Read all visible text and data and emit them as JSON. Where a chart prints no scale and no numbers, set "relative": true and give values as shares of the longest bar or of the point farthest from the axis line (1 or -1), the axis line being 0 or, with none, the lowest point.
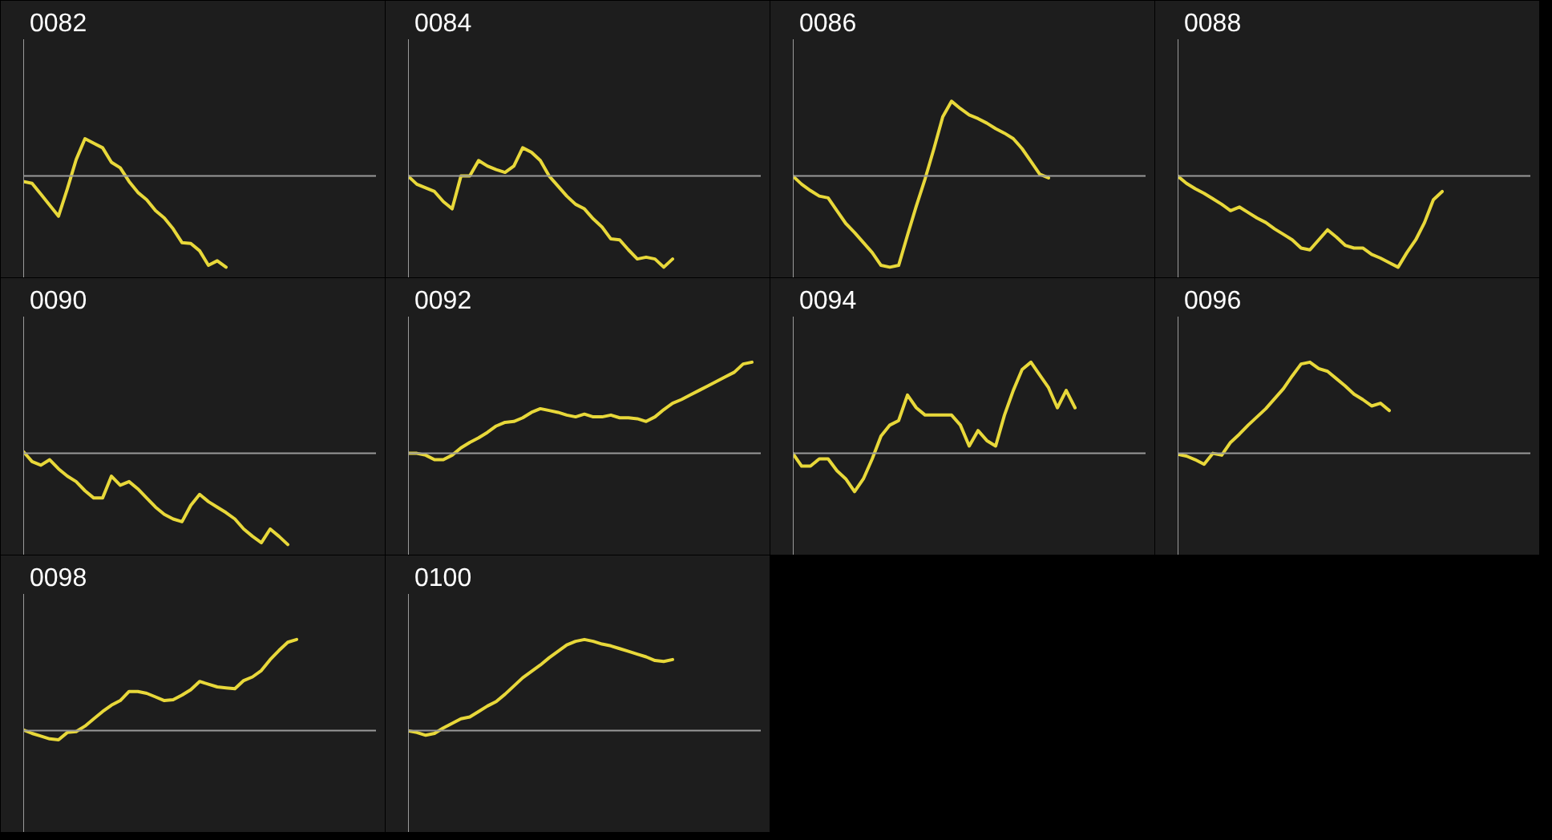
{
  "chart_data": [
    {
      "type": "line",
      "title": "0082",
      "relative": true,
      "color": "#e8d83a",
      "categories": [
        null,
        null,
        null,
        null,
        null,
        null,
        null,
        null,
        null,
        null,
        null,
        null,
        null,
        null,
        null,
        null,
        null,
        null,
        null,
        null,
        null,
        null,
        null,
        null,
        null,
        null,
        null,
        null,
        null,
        null,
        null,
        null,
        null,
        null,
        null,
        null,
        null,
        null,
        null,
        null
      ],
      "values": [
        -0.06,
        -0.08,
        -0.2,
        -0.32,
        -0.44,
        -0.14,
        0.18,
        0.41,
        0.36,
        0.31,
        0.15,
        0.09,
        -0.06,
        -0.18,
        -0.26,
        -0.38,
        -0.46,
        -0.58,
        -0.73,
        -0.74,
        -0.82,
        -0.98,
        -0.93,
        -1,
        null,
        null,
        null,
        null,
        null,
        null,
        null,
        null,
        null,
        null,
        null,
        null,
        null,
        null,
        null,
        null
      ]
    },
    {
      "type": "line",
      "title": "0084",
      "relative": true,
      "color": "#e8d83a",
      "categories": [
        null,
        null,
        null,
        null,
        null,
        null,
        null,
        null,
        null,
        null,
        null,
        null,
        null,
        null,
        null,
        null,
        null,
        null,
        null,
        null,
        null,
        null,
        null,
        null,
        null,
        null,
        null,
        null,
        null,
        null,
        null,
        null,
        null,
        null,
        null,
        null,
        null,
        null,
        null,
        null
      ],
      "values": [
        0,
        -0.09,
        -0.13,
        -0.17,
        -0.28,
        -0.36,
        0,
        0,
        0.17,
        0.11,
        0.07,
        0.04,
        0.11,
        0.31,
        0.26,
        0.17,
        0,
        -0.11,
        -0.22,
        -0.31,
        -0.36,
        -0.47,
        -0.56,
        -0.69,
        -0.7,
        -0.81,
        -0.91,
        -0.89,
        -0.91,
        -1,
        -0.91,
        null,
        null,
        null,
        null,
        null,
        null,
        null,
        null,
        null
      ]
    },
    {
      "type": "line",
      "title": "0086",
      "relative": true,
      "color": "#e8d83a",
      "categories": [
        null,
        null,
        null,
        null,
        null,
        null,
        null,
        null,
        null,
        null,
        null,
        null,
        null,
        null,
        null,
        null,
        null,
        null,
        null,
        null,
        null,
        null,
        null,
        null,
        null,
        null,
        null,
        null,
        null,
        null,
        null,
        null,
        null,
        null,
        null,
        null,
        null,
        null,
        null,
        null
      ],
      "values": [
        0,
        -0.09,
        -0.16,
        -0.22,
        -0.24,
        -0.38,
        -0.52,
        -0.62,
        -0.73,
        -0.84,
        -0.98,
        -1,
        -0.98,
        -0.65,
        -0.33,
        -0.03,
        0.3,
        0.65,
        0.82,
        0.74,
        0.67,
        0.63,
        0.58,
        0.52,
        0.47,
        0.41,
        0.3,
        0.16,
        0.02,
        -0.02,
        null,
        null,
        null,
        null,
        null,
        null,
        null,
        null,
        null,
        null
      ]
    },
    {
      "type": "line",
      "title": "0088",
      "relative": true,
      "color": "#e8d83a",
      "categories": [
        null,
        null,
        null,
        null,
        null,
        null,
        null,
        null,
        null,
        null,
        null,
        null,
        null,
        null,
        null,
        null,
        null,
        null,
        null,
        null,
        null,
        null,
        null,
        null,
        null,
        null,
        null,
        null,
        null,
        null,
        null,
        null,
        null,
        null,
        null,
        null,
        null,
        null,
        null,
        null
      ],
      "values": [
        0,
        -0.08,
        -0.14,
        -0.19,
        -0.25,
        -0.31,
        -0.38,
        -0.34,
        -0.4,
        -0.46,
        -0.51,
        -0.58,
        -0.64,
        -0.7,
        -0.79,
        -0.81,
        -0.7,
        -0.59,
        -0.67,
        -0.76,
        -0.79,
        -0.79,
        -0.86,
        -0.9,
        -0.95,
        -1,
        -0.84,
        -0.7,
        -0.51,
        -0.26,
        -0.17,
        null,
        null,
        null,
        null,
        null,
        null,
        null,
        null,
        null
      ]
    },
    {
      "type": "line",
      "title": "0090",
      "relative": true,
      "color": "#e8d83a",
      "categories": [
        null,
        null,
        null,
        null,
        null,
        null,
        null,
        null,
        null,
        null,
        null,
        null,
        null,
        null,
        null,
        null,
        null,
        null,
        null,
        null,
        null,
        null,
        null,
        null,
        null,
        null,
        null,
        null,
        null,
        null,
        null,
        null,
        null,
        null,
        null,
        null,
        null,
        null,
        null,
        null
      ],
      "values": [
        0.02,
        -0.09,
        -0.13,
        -0.07,
        -0.17,
        -0.25,
        -0.31,
        -0.41,
        -0.49,
        -0.49,
        -0.25,
        -0.35,
        -0.31,
        -0.39,
        -0.49,
        -0.59,
        -0.67,
        -0.72,
        -0.75,
        -0.57,
        -0.45,
        -0.53,
        -0.59,
        -0.65,
        -0.72,
        -0.83,
        -0.91,
        -0.98,
        -0.83,
        -0.91,
        -1,
        null,
        null,
        null,
        null,
        null,
        null,
        null,
        null,
        null
      ]
    },
    {
      "type": "line",
      "title": "0092",
      "relative": true,
      "color": "#e8d83a",
      "categories": [
        null,
        null,
        null,
        null,
        null,
        null,
        null,
        null,
        null,
        null,
        null,
        null,
        null,
        null,
        null,
        null,
        null,
        null,
        null,
        null,
        null,
        null,
        null,
        null,
        null,
        null,
        null,
        null,
        null,
        null,
        null,
        null,
        null,
        null,
        null,
        null,
        null,
        null,
        null,
        null
      ],
      "values": [
        0,
        0,
        -0.02,
        -0.07,
        -0.07,
        -0.02,
        0.06,
        0.12,
        0.17,
        0.23,
        0.3,
        0.34,
        0.35,
        0.39,
        0.45,
        0.49,
        0.47,
        0.45,
        0.42,
        0.4,
        0.43,
        0.4,
        0.4,
        0.42,
        0.39,
        0.39,
        0.38,
        0.35,
        0.4,
        0.48,
        0.55,
        0.59,
        0.64,
        0.69,
        0.74,
        0.79,
        0.84,
        0.89,
        0.98,
        1
      ]
    },
    {
      "type": "line",
      "title": "0094",
      "relative": true,
      "color": "#e8d83a",
      "categories": [
        null,
        null,
        null,
        null,
        null,
        null,
        null,
        null,
        null,
        null,
        null,
        null,
        null,
        null,
        null,
        null,
        null,
        null,
        null,
        null,
        null,
        null,
        null,
        null,
        null,
        null,
        null,
        null,
        null,
        null,
        null,
        null,
        null,
        null,
        null,
        null,
        null,
        null,
        null,
        null
      ],
      "values": [
        0,
        -0.14,
        -0.14,
        -0.06,
        -0.06,
        -0.19,
        -0.28,
        -0.42,
        -0.28,
        -0.06,
        0.19,
        0.31,
        0.36,
        0.64,
        0.5,
        0.42,
        0.42,
        0.42,
        0.42,
        0.31,
        0.08,
        0.25,
        0.14,
        0.08,
        0.42,
        0.69,
        0.92,
        1,
        0.86,
        0.72,
        0.5,
        0.69,
        0.5,
        null,
        null,
        null,
        null,
        null,
        null,
        null
      ]
    },
    {
      "type": "line",
      "title": "0096",
      "relative": true,
      "color": "#e8d83a",
      "categories": [
        null,
        null,
        null,
        null,
        null,
        null,
        null,
        null,
        null,
        null,
        null,
        null,
        null,
        null,
        null,
        null,
        null,
        null,
        null,
        null,
        null,
        null,
        null,
        null,
        null,
        null,
        null,
        null,
        null,
        null,
        null,
        null,
        null,
        null,
        null,
        null,
        null,
        null,
        null,
        null
      ],
      "values": [
        -0.01,
        -0.03,
        -0.07,
        -0.12,
        0,
        -0.02,
        0.12,
        0.21,
        0.31,
        0.4,
        0.49,
        0.6,
        0.71,
        0.85,
        0.98,
        1,
        0.93,
        0.9,
        0.82,
        0.74,
        0.65,
        0.59,
        0.52,
        0.55,
        0.47,
        null,
        null,
        null,
        null,
        null,
        null,
        null,
        null,
        null,
        null,
        null,
        null,
        null,
        null,
        null
      ]
    },
    {
      "type": "line",
      "title": "0098",
      "relative": true,
      "color": "#e8d83a",
      "categories": [
        null,
        null,
        null,
        null,
        null,
        null,
        null,
        null,
        null,
        null,
        null,
        null,
        null,
        null,
        null,
        null,
        null,
        null,
        null,
        null,
        null,
        null,
        null,
        null,
        null,
        null,
        null,
        null,
        null,
        null,
        null,
        null,
        null,
        null,
        null,
        null,
        null,
        null,
        null,
        null
      ],
      "values": [
        0.01,
        -0.03,
        -0.06,
        -0.09,
        -0.1,
        -0.02,
        -0.01,
        0.05,
        0.13,
        0.21,
        0.28,
        0.33,
        0.43,
        0.43,
        0.41,
        0.37,
        0.33,
        0.34,
        0.39,
        0.45,
        0.54,
        0.51,
        0.48,
        0.47,
        0.46,
        0.55,
        0.59,
        0.66,
        0.78,
        0.88,
        0.97,
        1,
        null,
        null,
        null,
        null,
        null,
        null,
        null,
        null
      ]
    },
    {
      "type": "line",
      "title": "0100",
      "relative": true,
      "color": "#e8d83a",
      "categories": [
        null,
        null,
        null,
        null,
        null,
        null,
        null,
        null,
        null,
        null,
        null,
        null,
        null,
        null,
        null,
        null,
        null,
        null,
        null,
        null,
        null,
        null,
        null,
        null,
        null,
        null,
        null,
        null,
        null,
        null,
        null,
        null,
        null,
        null,
        null,
        null,
        null,
        null,
        null,
        null
      ],
      "values": [
        0,
        -0.02,
        -0.05,
        -0.03,
        0.03,
        0.08,
        0.13,
        0.15,
        0.21,
        0.27,
        0.32,
        0.4,
        0.49,
        0.58,
        0.65,
        0.72,
        0.8,
        0.87,
        0.94,
        0.98,
        1,
        0.98,
        0.95,
        0.93,
        0.9,
        0.87,
        0.84,
        0.81,
        0.77,
        0.76,
        0.78,
        null,
        null,
        null,
        null,
        null,
        null,
        null,
        null,
        null
      ]
    }
  ]
}
